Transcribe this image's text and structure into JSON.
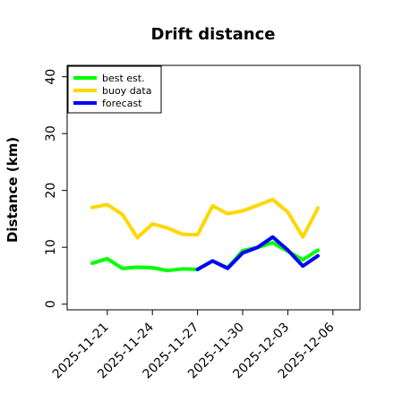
{
  "chart_data": {
    "type": "line",
    "title": "Drift distance",
    "xlabel": "",
    "ylabel": "Distance (km)",
    "ylim": [
      -1,
      42
    ],
    "yticks": [
      0,
      10,
      20,
      30,
      40
    ],
    "x_ticks": [
      {
        "label": "2025-11-21",
        "color": "#000000"
      },
      {
        "label": "2025-11-24",
        "color": "#000000"
      },
      {
        "label": "2025-11-27",
        "color": "#008000"
      },
      {
        "label": "2025-11-30",
        "color": "#000000"
      },
      {
        "label": "2025-12-03",
        "color": "#000000"
      },
      {
        "label": "2025-12-06",
        "color": "#000000"
      }
    ],
    "x_dates": [
      "2025-11-20",
      "2025-11-21",
      "2025-11-22",
      "2025-11-23",
      "2025-11-24",
      "2025-11-25",
      "2025-11-26",
      "2025-11-27",
      "2025-11-28",
      "2025-11-29",
      "2025-11-30",
      "2025-12-01",
      "2025-12-02",
      "2025-12-03",
      "2025-12-04",
      "2025-12-05"
    ],
    "series": [
      {
        "name": "best est.",
        "color": "#00ff00",
        "x": [
          "2025-11-20",
          "2025-11-21",
          "2025-11-22",
          "2025-11-23",
          "2025-11-24",
          "2025-11-25",
          "2025-11-26",
          "2025-11-27",
          "2025-11-28",
          "2025-11-29",
          "2025-11-30",
          "2025-12-01",
          "2025-12-02",
          "2025-12-03",
          "2025-12-04",
          "2025-12-05"
        ],
        "values": [
          7.2,
          8.0,
          6.3,
          6.5,
          6.4,
          5.9,
          6.2,
          6.1,
          7.6,
          6.4,
          9.4,
          10.0,
          10.8,
          9.3,
          7.8,
          9.5
        ]
      },
      {
        "name": "buoy data",
        "color": "#ffd700",
        "x": [
          "2025-11-20",
          "2025-11-21",
          "2025-11-22",
          "2025-11-23",
          "2025-11-24",
          "2025-11-25",
          "2025-11-26",
          "2025-11-27",
          "2025-11-28",
          "2025-11-29",
          "2025-11-30",
          "2025-12-01",
          "2025-12-02",
          "2025-12-03",
          "2025-12-04",
          "2025-12-05"
        ],
        "values": [
          17.0,
          17.5,
          15.8,
          11.7,
          14.1,
          13.4,
          12.3,
          12.2,
          17.3,
          15.9,
          16.4,
          17.4,
          18.4,
          16.2,
          11.8,
          16.9
        ]
      },
      {
        "name": "forecast",
        "color": "#0000ff",
        "x": [
          "2025-11-27",
          "2025-11-28",
          "2025-11-29",
          "2025-11-30",
          "2025-12-01",
          "2025-12-02",
          "2025-12-03",
          "2025-12-04",
          "2025-12-05"
        ],
        "values": [
          6.1,
          7.6,
          6.3,
          9.0,
          10.0,
          11.8,
          9.5,
          6.7,
          8.5
        ]
      }
    ],
    "legend": {
      "placement": "top-left",
      "entries": [
        "best est.",
        "buoy data",
        "forecast"
      ]
    },
    "grid": false
  }
}
